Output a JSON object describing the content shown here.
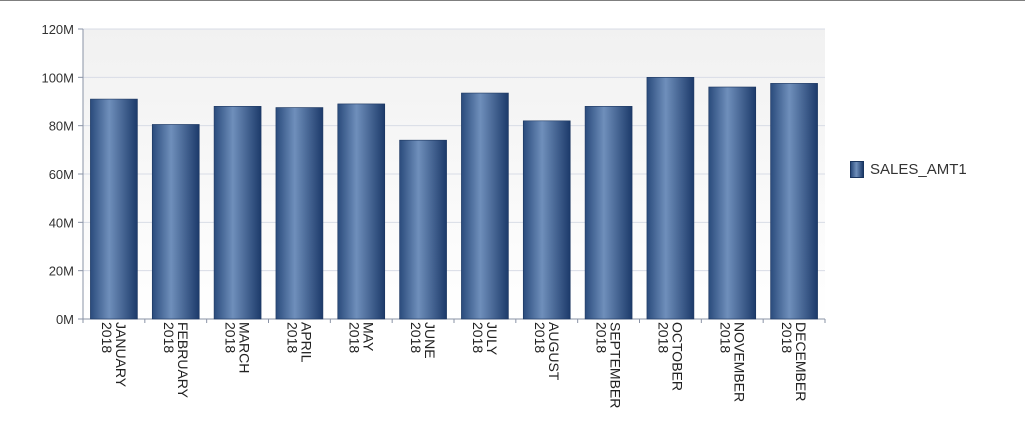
{
  "chart_data": {
    "type": "bar",
    "categories": [
      {
        "month": "JANUARY",
        "year": "2018"
      },
      {
        "month": "FEBRUARY",
        "year": "2018"
      },
      {
        "month": "MARCH",
        "year": "2018"
      },
      {
        "month": "APRIL",
        "year": "2018"
      },
      {
        "month": "MAY",
        "year": "2018"
      },
      {
        "month": "JUNE",
        "year": "2018"
      },
      {
        "month": "JULY",
        "year": "2018"
      },
      {
        "month": "AUGUST",
        "year": "2018"
      },
      {
        "month": "SEPTEMBER",
        "year": "2018"
      },
      {
        "month": "OCTOBER",
        "year": "2018"
      },
      {
        "month": "NOVEMBER",
        "year": "2018"
      },
      {
        "month": "DECEMBER",
        "year": "2018"
      }
    ],
    "series": [
      {
        "name": "SALES_AMT1",
        "values": [
          91,
          80.5,
          88,
          87.5,
          89,
          74,
          93.5,
          82,
          88,
          100,
          96,
          97.5
        ]
      }
    ],
    "y_unit_suffix": "M",
    "ylim": [
      0,
      120
    ],
    "yticks": [
      0,
      20,
      40,
      60,
      80,
      100,
      120
    ],
    "ytick_labels": [
      "0M",
      "20M",
      "40M",
      "60M",
      "80M",
      "100M",
      "120M"
    ],
    "legend_position": "right",
    "grid": true,
    "colors": {
      "bar_dark": "#1c3a6a",
      "bar_light": "#6f8fbb",
      "grid": "#d8dce6",
      "plot_bg_top": "#f2f2f2"
    }
  }
}
